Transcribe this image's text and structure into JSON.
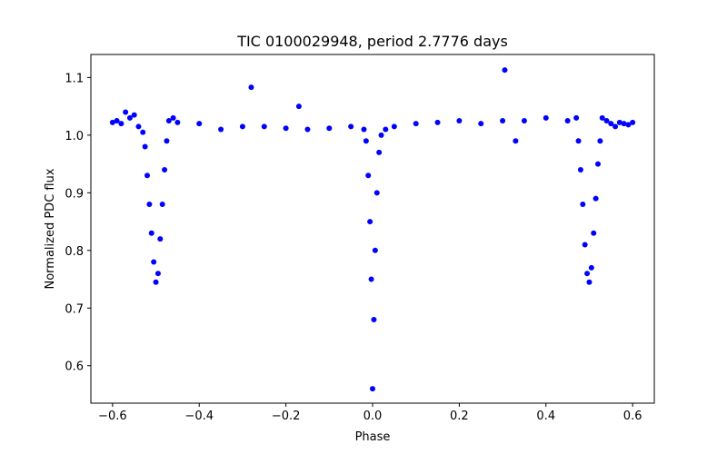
{
  "chart_data": {
    "type": "scatter",
    "title": "TIC 0100029948, period 2.7776 days",
    "xlabel": "Phase",
    "ylabel": "Normalized PDC flux",
    "xlim": [
      -0.65,
      0.65
    ],
    "ylim": [
      0.535,
      1.14
    ],
    "xticks": [
      -0.6,
      -0.4,
      -0.2,
      0.0,
      0.2,
      0.4,
      0.6
    ],
    "xtick_labels": [
      "−0.6",
      "−0.4",
      "−0.2",
      "0.0",
      "0.2",
      "0.4",
      "0.6"
    ],
    "yticks": [
      0.6,
      0.7,
      0.8,
      0.9,
      1.0,
      1.1
    ],
    "ytick_labels": [
      "0.6",
      "0.7",
      "0.8",
      "0.9",
      "1.0",
      "1.1"
    ],
    "grid": false,
    "marker_color": "#0000ff",
    "series": [
      {
        "points": [
          [
            -0.6,
            1.022
          ],
          [
            -0.59,
            1.025
          ],
          [
            -0.58,
            1.02
          ],
          [
            -0.57,
            1.04
          ],
          [
            -0.56,
            1.03
          ],
          [
            -0.55,
            1.035
          ],
          [
            -0.54,
            1.015
          ],
          [
            -0.53,
            1.005
          ],
          [
            -0.525,
            0.98
          ],
          [
            -0.52,
            0.93
          ],
          [
            -0.515,
            0.88
          ],
          [
            -0.51,
            0.83
          ],
          [
            -0.505,
            0.78
          ],
          [
            -0.5,
            0.745
          ],
          [
            -0.495,
            0.76
          ],
          [
            -0.49,
            0.82
          ],
          [
            -0.485,
            0.88
          ],
          [
            -0.48,
            0.94
          ],
          [
            -0.475,
            0.99
          ],
          [
            -0.47,
            1.025
          ],
          [
            -0.46,
            1.03
          ],
          [
            -0.45,
            1.022
          ],
          [
            -0.4,
            1.02
          ],
          [
            -0.35,
            1.01
          ],
          [
            -0.3,
            1.015
          ],
          [
            -0.28,
            1.083
          ],
          [
            -0.25,
            1.015
          ],
          [
            -0.2,
            1.012
          ],
          [
            -0.17,
            1.05
          ],
          [
            -0.15,
            1.01
          ],
          [
            -0.1,
            1.012
          ],
          [
            -0.05,
            1.015
          ],
          [
            -0.02,
            1.01
          ],
          [
            -0.015,
            0.99
          ],
          [
            -0.01,
            0.93
          ],
          [
            -0.006,
            0.85
          ],
          [
            -0.003,
            0.75
          ],
          [
            0.0,
            0.56
          ],
          [
            0.003,
            0.68
          ],
          [
            0.006,
            0.8
          ],
          [
            0.01,
            0.9
          ],
          [
            0.015,
            0.97
          ],
          [
            0.02,
            1.0
          ],
          [
            0.03,
            1.01
          ],
          [
            0.05,
            1.015
          ],
          [
            0.1,
            1.02
          ],
          [
            0.15,
            1.022
          ],
          [
            0.2,
            1.025
          ],
          [
            0.25,
            1.02
          ],
          [
            0.3,
            1.025
          ],
          [
            0.305,
            1.113
          ],
          [
            0.33,
            0.99
          ],
          [
            0.35,
            1.025
          ],
          [
            0.4,
            1.03
          ],
          [
            0.45,
            1.025
          ],
          [
            0.47,
            1.03
          ],
          [
            0.475,
            0.99
          ],
          [
            0.48,
            0.94
          ],
          [
            0.485,
            0.88
          ],
          [
            0.49,
            0.81
          ],
          [
            0.495,
            0.76
          ],
          [
            0.5,
            0.745
          ],
          [
            0.505,
            0.77
          ],
          [
            0.51,
            0.83
          ],
          [
            0.515,
            0.89
          ],
          [
            0.52,
            0.95
          ],
          [
            0.525,
            0.99
          ],
          [
            0.53,
            1.03
          ],
          [
            0.54,
            1.025
          ],
          [
            0.55,
            1.02
          ],
          [
            0.56,
            1.015
          ],
          [
            0.57,
            1.022
          ],
          [
            0.58,
            1.02
          ],
          [
            0.59,
            1.018
          ],
          [
            0.6,
            1.022
          ]
        ]
      }
    ]
  }
}
